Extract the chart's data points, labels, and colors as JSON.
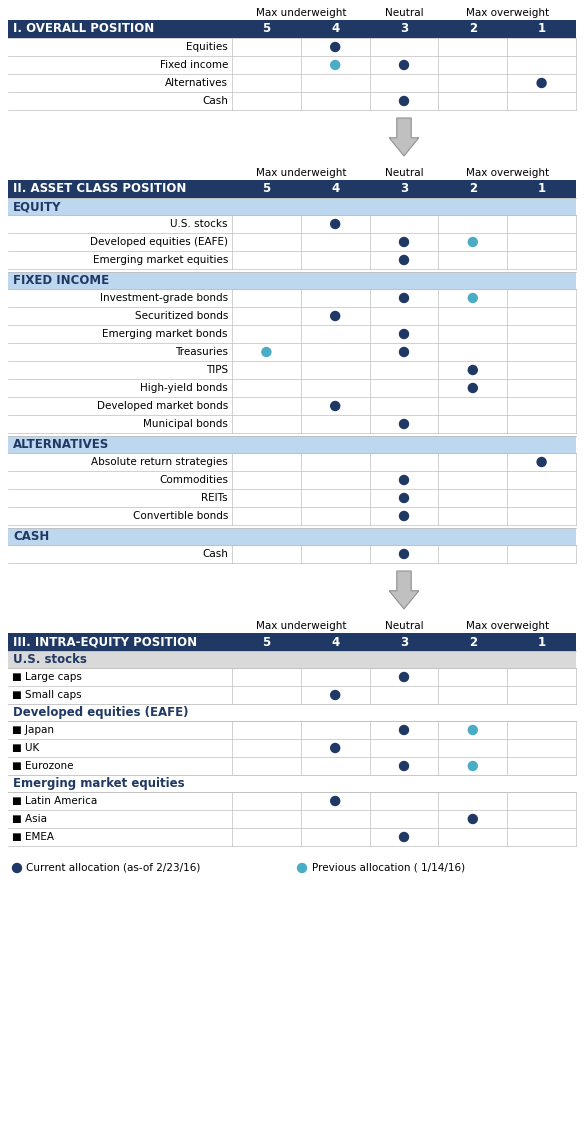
{
  "dark_blue": "#1F3864",
  "light_blue_sub": "#BDD7EE",
  "light_gray": "#D6DCE4",
  "light_gray2": "#D9D9D9",
  "dot_dark": "#1F3864",
  "dot_cyan": "#4BACC6",
  "grid_color": "#BFBFBF",
  "bg_white": "#FFFFFF",
  "section1": {
    "title": "I. OVERALL POSITION",
    "rows": [
      {
        "label": "Equities",
        "current": 4,
        "previous": null
      },
      {
        "label": "Fixed income",
        "current": 3,
        "previous": 4
      },
      {
        "label": "Alternatives",
        "current": 1,
        "previous": null
      },
      {
        "label": "Cash",
        "current": 3,
        "previous": null
      }
    ]
  },
  "section2": {
    "title": "II. ASSET CLASS POSITION",
    "subsections": [
      {
        "name": "EQUITY",
        "rows": [
          {
            "label": "U.S. stocks",
            "current": 4,
            "previous": null
          },
          {
            "label": "Developed equities (EAFE)",
            "current": 3,
            "previous": 2
          },
          {
            "label": "Emerging market equities",
            "current": 3,
            "previous": null
          }
        ]
      },
      {
        "name": "FIXED INCOME",
        "rows": [
          {
            "label": "Investment-grade bonds",
            "current": 3,
            "previous": 2
          },
          {
            "label": "Securitized bonds",
            "current": 4,
            "previous": null
          },
          {
            "label": "Emerging market bonds",
            "current": 3,
            "previous": null
          },
          {
            "label": "Treasuries",
            "current": 3,
            "previous": 5
          },
          {
            "label": "TIPS",
            "current": 2,
            "previous": null
          },
          {
            "label": "High-yield bonds",
            "current": 2,
            "previous": null
          },
          {
            "label": "Developed market bonds",
            "current": 4,
            "previous": null
          },
          {
            "label": "Municipal bonds",
            "current": 3,
            "previous": null
          }
        ]
      },
      {
        "name": "ALTERNATIVES",
        "rows": [
          {
            "label": "Absolute return strategies",
            "current": 1,
            "previous": null
          },
          {
            "label": "Commodities",
            "current": 3,
            "previous": null
          },
          {
            "label": "REITs",
            "current": 3,
            "previous": null
          },
          {
            "label": "Convertible bonds",
            "current": 3,
            "previous": null
          }
        ]
      },
      {
        "name": "CASH",
        "rows": [
          {
            "label": "Cash",
            "current": 3,
            "previous": null
          }
        ]
      }
    ]
  },
  "section3": {
    "title": "III. INTRA-EQUITY POSITION",
    "subsections": [
      {
        "name": "U.S. stocks",
        "style": "gray",
        "rows": [
          {
            "label": "■ Large caps",
            "current": 3,
            "previous": null
          },
          {
            "label": "■ Small caps",
            "current": 4,
            "previous": null
          }
        ]
      },
      {
        "name": "Developed equities (EAFE)",
        "style": "white_border",
        "rows": [
          {
            "label": "■ Japan",
            "current": 3,
            "previous": 2
          },
          {
            "label": "■ UK",
            "current": 4,
            "previous": null
          },
          {
            "label": "■ Eurozone",
            "current": 3,
            "previous": 2
          }
        ]
      },
      {
        "name": "Emerging market equities",
        "style": "white_border",
        "rows": [
          {
            "label": "■ Latin America",
            "current": 4,
            "previous": null
          },
          {
            "label": "■ Asia",
            "current": 2,
            "previous": null
          },
          {
            "label": "■ EMEA",
            "current": 3,
            "previous": null
          }
        ]
      }
    ]
  },
  "legend": {
    "current_label": "Current allocation (as-of 2/23/16)",
    "previous_label": "Previous allocation ( 1/14/16)"
  },
  "col_header_labels": [
    "Max underweight",
    "Neutral",
    "Max overweight"
  ],
  "col_numbers": [
    "5",
    "4",
    "3",
    "2",
    "1"
  ]
}
